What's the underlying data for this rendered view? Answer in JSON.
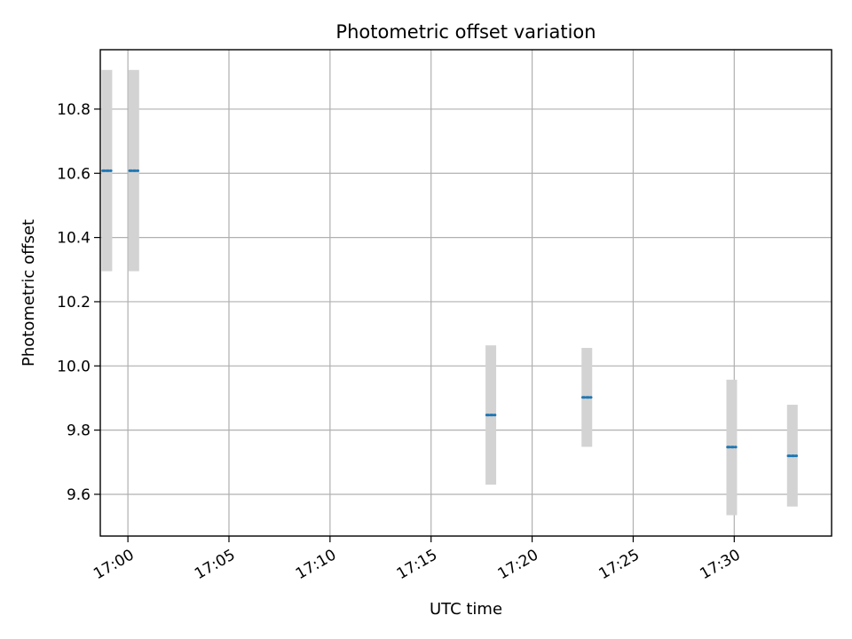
{
  "chart_data": {
    "type": "scatter",
    "title": "Photometric offset variation",
    "xlabel": "UTC time",
    "ylabel": "Photometric offset",
    "xlim": [
      "16:58:38",
      "17:34:49"
    ],
    "ylim": [
      9.47,
      10.985
    ],
    "grid": true,
    "x_ticks": [
      "17:00",
      "17:05",
      "17:10",
      "17:15",
      "17:20",
      "17:25",
      "17:30"
    ],
    "y_ticks": [
      "9.6",
      "9.8",
      "10.0",
      "10.2",
      "10.4",
      "10.6",
      "10.8"
    ],
    "series": [
      {
        "marker_color": "#1f77b4",
        "errorbar_color": "#d3d3d3",
        "points": [
          {
            "x_start": "16:58:45",
            "x_end": "16:59:10",
            "y": 10.608,
            "err_low": 10.295,
            "err_high": 10.922
          },
          {
            "x_start": "17:00:05",
            "x_end": "17:00:30",
            "y": 10.608,
            "err_low": 10.295,
            "err_high": 10.922
          },
          {
            "x_start": "17:17:45",
            "x_end": "17:18:10",
            "y": 9.847,
            "err_low": 9.63,
            "err_high": 10.064
          },
          {
            "x_start": "17:22:30",
            "x_end": "17:22:55",
            "y": 9.902,
            "err_low": 9.748,
            "err_high": 10.056
          },
          {
            "x_start": "17:29:40",
            "x_end": "17:30:05",
            "y": 9.747,
            "err_low": 9.535,
            "err_high": 9.957
          },
          {
            "x_start": "17:32:40",
            "x_end": "17:33:05",
            "y": 9.72,
            "err_low": 9.562,
            "err_high": 9.879
          }
        ]
      }
    ]
  }
}
